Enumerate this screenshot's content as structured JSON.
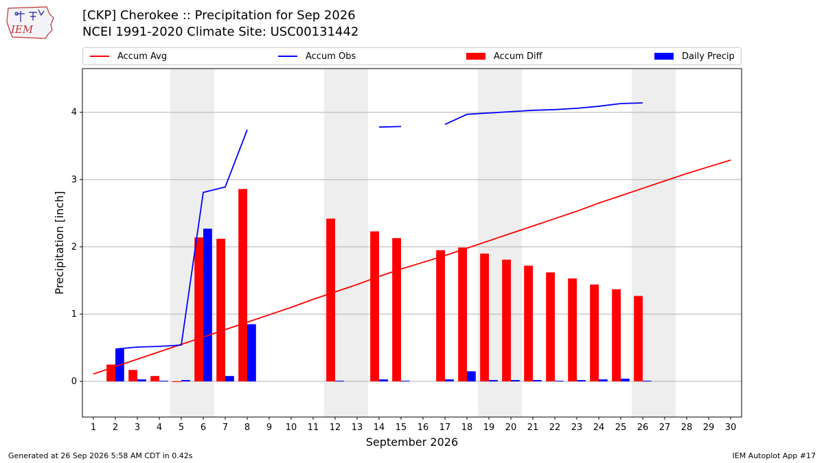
{
  "header": {
    "title_line1": "[CKP] Cherokee :: Precipitation for Sep 2026",
    "title_line2": "NCEI 1991-2020 Climate Site: USC00131442"
  },
  "logo": {
    "text": "IEM"
  },
  "footer": {
    "generated": "Generated at 26 Sep 2026 5:58 AM CDT in 0.42s",
    "app": "IEM Autoplot App #17"
  },
  "legend": [
    {
      "label": "Accum Avg",
      "kind": "line",
      "color": "#ff0000"
    },
    {
      "label": "Accum Obs",
      "kind": "line",
      "color": "#0000ff"
    },
    {
      "label": "Accum Diff",
      "kind": "patch",
      "color": "#ff0000"
    },
    {
      "label": "Daily Precip",
      "kind": "patch",
      "color": "#0000ff"
    }
  ],
  "chart_data": {
    "type": "bar",
    "xlabel": "September 2026",
    "ylabel": "Precipitation [inch]",
    "xlim": [
      0.5,
      30.5
    ],
    "ylim": [
      -0.53,
      4.65
    ],
    "yticks": [
      0,
      1,
      2,
      3,
      4
    ],
    "xticks": [
      1,
      2,
      3,
      4,
      5,
      6,
      7,
      8,
      9,
      10,
      11,
      12,
      13,
      14,
      15,
      16,
      17,
      18,
      19,
      20,
      21,
      22,
      23,
      24,
      25,
      26,
      27,
      28,
      29,
      30
    ],
    "grid": "y",
    "legend_position": "top",
    "weekend_shading": [
      [
        5,
        6
      ],
      [
        12,
        13
      ],
      [
        19,
        20
      ],
      [
        26,
        27
      ]
    ],
    "accum_avg": {
      "name": "Accum Avg",
      "color": "#ff0000",
      "x": [
        1,
        2,
        3,
        4,
        5,
        6,
        7,
        8,
        9,
        10,
        11,
        12,
        13,
        14,
        15,
        16,
        17,
        18,
        19,
        20,
        21,
        22,
        23,
        24,
        25,
        26,
        27,
        28,
        29,
        30
      ],
      "y": [
        0.11,
        0.22,
        0.33,
        0.44,
        0.55,
        0.66,
        0.77,
        0.88,
        0.99,
        1.1,
        1.22,
        1.33,
        1.44,
        1.56,
        1.67,
        1.77,
        1.87,
        1.98,
        2.09,
        2.2,
        2.31,
        2.42,
        2.53,
        2.65,
        2.76,
        2.87,
        2.98,
        3.09,
        3.19,
        3.29
      ]
    },
    "accum_obs": {
      "name": "Accum Obs",
      "color": "#0000ff",
      "segments": [
        {
          "x": [
            2,
            3,
            4,
            5,
            6,
            7,
            8
          ],
          "y": [
            0.48,
            0.51,
            0.52,
            0.54,
            2.81,
            2.89,
            3.74
          ]
        },
        {
          "x": [
            14,
            15
          ],
          "y": [
            3.78,
            3.79
          ]
        },
        {
          "x": [
            17,
            18,
            19,
            20,
            21,
            22,
            23,
            24,
            25,
            26
          ],
          "y": [
            3.82,
            3.97,
            3.99,
            4.01,
            4.03,
            4.04,
            4.06,
            4.09,
            4.13,
            4.14
          ]
        }
      ]
    },
    "accum_diff": {
      "name": "Accum Diff",
      "color": "#ff0000",
      "x": [
        2,
        3,
        4,
        5,
        6,
        7,
        8,
        12,
        14,
        15,
        17,
        18,
        19,
        20,
        21,
        22,
        23,
        24,
        25,
        26
      ],
      "values": [
        0.25,
        0.17,
        0.08,
        -0.01,
        2.14,
        2.12,
        2.86,
        2.42,
        2.23,
        2.13,
        1.95,
        1.99,
        1.9,
        1.81,
        1.72,
        1.62,
        1.53,
        1.44,
        1.37,
        1.27
      ]
    },
    "daily_precip": {
      "name": "Daily Precip",
      "color": "#0000ff",
      "x": [
        2,
        3,
        4,
        5,
        6,
        7,
        8,
        12,
        14,
        15,
        17,
        18,
        19,
        20,
        21,
        22,
        23,
        24,
        25,
        26
      ],
      "values": [
        0.48,
        0.03,
        0.01,
        0.02,
        2.27,
        0.08,
        0.85,
        0.01,
        0.03,
        0.01,
        0.03,
        0.15,
        0.02,
        0.02,
        0.02,
        0.01,
        0.02,
        0.03,
        0.04,
        0.01
      ]
    }
  }
}
